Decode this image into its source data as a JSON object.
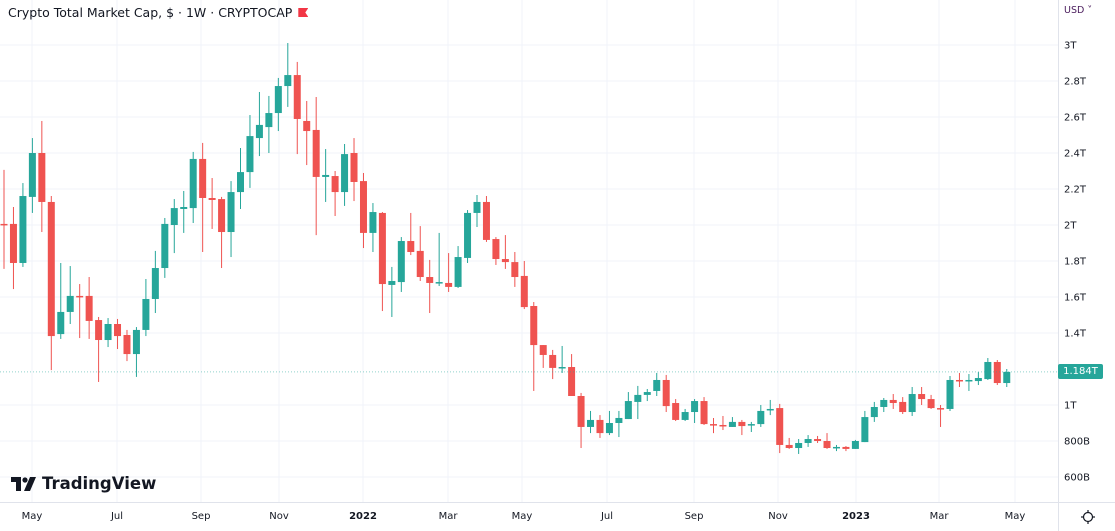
{
  "header": {
    "title": "Crypto Total Market Cap, $ · 1W · CRYPTOCAP",
    "flag_icon": "flag-icon",
    "currency": "USD ˅"
  },
  "watermark": {
    "text": "TradingView"
  },
  "last_price": "1.184T",
  "colors": {
    "up": "#26a69a",
    "down": "#ef5350",
    "grid": "#f0f3fa",
    "text": "#131722"
  },
  "chart_data": {
    "type": "candlestick",
    "title": "Crypto Total Market Cap, $ · 1W · CRYPTOCAP",
    "interval": "1W",
    "x_start": "2021-04-12",
    "y_unit": "T USD",
    "ylim": [
      0.6,
      3.0
    ],
    "y_ticks": [
      {
        "value": 3.0,
        "label": "3T"
      },
      {
        "value": 2.8,
        "label": "2.8T"
      },
      {
        "value": 2.6,
        "label": "2.6T"
      },
      {
        "value": 2.4,
        "label": "2.4T"
      },
      {
        "value": 2.2,
        "label": "2.2T"
      },
      {
        "value": 2.0,
        "label": "2T"
      },
      {
        "value": 1.8,
        "label": "1.8T"
      },
      {
        "value": 1.6,
        "label": "1.6T"
      },
      {
        "value": 1.4,
        "label": "1.4T"
      },
      {
        "value": 1.0,
        "label": "1T"
      },
      {
        "value": 0.8,
        "label": "800B"
      },
      {
        "value": 0.6,
        "label": "600B"
      }
    ],
    "x_ticks": [
      "May",
      "Jul",
      "Sep",
      "Nov",
      "2022",
      "Mar",
      "May",
      "Jul",
      "Sep",
      "Nov",
      "2023",
      "Mar",
      "May"
    ],
    "grid": true,
    "ohlc": [
      [
        2.006,
        2.306,
        1.756,
        2.0
      ],
      [
        2.006,
        2.1,
        1.644,
        1.789
      ],
      [
        1.789,
        2.233,
        1.767,
        2.161
      ],
      [
        2.156,
        2.483,
        2.067,
        2.4
      ],
      [
        2.4,
        2.578,
        1.961,
        2.128
      ],
      [
        2.128,
        2.161,
        1.194,
        1.383
      ],
      [
        1.394,
        1.789,
        1.367,
        1.517
      ],
      [
        1.517,
        1.772,
        1.45,
        1.606
      ],
      [
        1.606,
        1.672,
        1.372,
        1.6
      ],
      [
        1.606,
        1.711,
        1.367,
        1.467
      ],
      [
        1.472,
        1.489,
        1.128,
        1.361
      ],
      [
        1.361,
        1.483,
        1.322,
        1.45
      ],
      [
        1.45,
        1.478,
        1.311,
        1.383
      ],
      [
        1.389,
        1.417,
        1.244,
        1.283
      ],
      [
        1.283,
        1.433,
        1.156,
        1.417
      ],
      [
        1.417,
        1.7,
        1.383,
        1.589
      ],
      [
        1.589,
        1.856,
        1.511,
        1.761
      ],
      [
        1.761,
        2.039,
        1.706,
        2.006
      ],
      [
        2.0,
        2.144,
        1.844,
        2.094
      ],
      [
        2.089,
        2.189,
        1.956,
        2.1
      ],
      [
        2.094,
        2.406,
        2.011,
        2.367
      ],
      [
        2.367,
        2.456,
        1.85,
        2.15
      ],
      [
        2.15,
        2.261,
        1.978,
        2.139
      ],
      [
        2.144,
        2.156,
        1.761,
        1.961
      ],
      [
        1.961,
        2.244,
        1.822,
        2.183
      ],
      [
        2.183,
        2.428,
        2.089,
        2.294
      ],
      [
        2.294,
        2.611,
        2.206,
        2.494
      ],
      [
        2.483,
        2.739,
        2.383,
        2.556
      ],
      [
        2.544,
        2.717,
        2.4,
        2.622
      ],
      [
        2.622,
        2.817,
        2.522,
        2.772
      ],
      [
        2.772,
        3.011,
        2.656,
        2.833
      ],
      [
        2.833,
        2.906,
        2.394,
        2.589
      ],
      [
        2.578,
        2.689,
        2.333,
        2.522
      ],
      [
        2.528,
        2.711,
        1.944,
        2.267
      ],
      [
        2.267,
        2.422,
        2.128,
        2.278
      ],
      [
        2.272,
        2.3,
        2.05,
        2.183
      ],
      [
        2.183,
        2.45,
        2.106,
        2.394
      ],
      [
        2.4,
        2.483,
        2.133,
        2.239
      ],
      [
        2.244,
        2.289,
        1.872,
        1.956
      ],
      [
        1.956,
        2.122,
        1.85,
        2.072
      ],
      [
        2.067,
        2.072,
        1.522,
        1.672
      ],
      [
        1.667,
        1.767,
        1.489,
        1.689
      ],
      [
        1.683,
        1.933,
        1.628,
        1.911
      ],
      [
        1.911,
        2.067,
        1.833,
        1.85
      ],
      [
        1.856,
        1.994,
        1.689,
        1.711
      ],
      [
        1.711,
        1.806,
        1.511,
        1.678
      ],
      [
        1.678,
        1.956,
        1.661,
        1.683
      ],
      [
        1.678,
        1.844,
        1.628,
        1.656
      ],
      [
        1.656,
        1.883,
        1.65,
        1.822
      ],
      [
        1.817,
        2.083,
        1.789,
        2.067
      ],
      [
        2.067,
        2.167,
        1.989,
        2.128
      ],
      [
        2.128,
        2.161,
        1.906,
        1.917
      ],
      [
        1.922,
        1.933,
        1.778,
        1.811
      ],
      [
        1.811,
        1.944,
        1.756,
        1.794
      ],
      [
        1.794,
        1.85,
        1.656,
        1.711
      ],
      [
        1.717,
        1.8,
        1.533,
        1.544
      ],
      [
        1.55,
        1.572,
        1.078,
        1.333
      ],
      [
        1.333,
        1.333,
        1.206,
        1.278
      ],
      [
        1.278,
        1.306,
        1.144,
        1.206
      ],
      [
        1.206,
        1.328,
        1.178,
        1.211
      ],
      [
        1.211,
        1.283,
        1.05,
        1.05
      ],
      [
        1.05,
        1.067,
        0.761,
        0.878
      ],
      [
        0.878,
        0.967,
        0.844,
        0.917
      ],
      [
        0.917,
        0.944,
        0.817,
        0.844
      ],
      [
        0.844,
        0.967,
        0.833,
        0.9
      ],
      [
        0.9,
        0.967,
        0.822,
        0.928
      ],
      [
        0.922,
        1.072,
        0.922,
        1.022
      ],
      [
        1.017,
        1.106,
        0.922,
        1.056
      ],
      [
        1.056,
        1.089,
        1.022,
        1.072
      ],
      [
        1.078,
        1.178,
        1.05,
        1.139
      ],
      [
        1.139,
        1.167,
        0.961,
        0.994
      ],
      [
        1.011,
        1.033,
        0.911,
        0.917
      ],
      [
        0.917,
        0.978,
        0.911,
        0.961
      ],
      [
        0.961,
        1.033,
        0.9,
        1.022
      ],
      [
        1.022,
        1.044,
        0.889,
        0.894
      ],
      [
        0.894,
        0.928,
        0.844,
        0.889
      ],
      [
        0.889,
        0.939,
        0.861,
        0.883
      ],
      [
        0.878,
        0.933,
        0.878,
        0.906
      ],
      [
        0.906,
        0.917,
        0.833,
        0.883
      ],
      [
        0.889,
        0.906,
        0.85,
        0.894
      ],
      [
        0.894,
        1.0,
        0.878,
        0.967
      ],
      [
        0.972,
        1.028,
        0.944,
        0.978
      ],
      [
        0.983,
        1.006,
        0.733,
        0.778
      ],
      [
        0.778,
        0.817,
        0.756,
        0.761
      ],
      [
        0.761,
        0.811,
        0.728,
        0.789
      ],
      [
        0.789,
        0.833,
        0.767,
        0.811
      ],
      [
        0.811,
        0.828,
        0.789,
        0.8
      ],
      [
        0.8,
        0.844,
        0.756,
        0.761
      ],
      [
        0.761,
        0.778,
        0.744,
        0.767
      ],
      [
        0.767,
        0.772,
        0.744,
        0.756
      ],
      [
        0.756,
        0.806,
        0.756,
        0.8
      ],
      [
        0.794,
        0.967,
        0.794,
        0.933
      ],
      [
        0.933,
        1.017,
        0.906,
        0.989
      ],
      [
        0.989,
        1.039,
        0.961,
        1.028
      ],
      [
        1.028,
        1.061,
        0.978,
        1.011
      ],
      [
        1.017,
        1.044,
        0.95,
        0.961
      ],
      [
        0.961,
        1.1,
        0.939,
        1.061
      ],
      [
        1.061,
        1.1,
        1.0,
        1.033
      ],
      [
        1.033,
        1.056,
        0.978,
        0.983
      ],
      [
        0.983,
        1.0,
        0.878,
        0.978
      ],
      [
        0.978,
        1.161,
        0.967,
        1.139
      ],
      [
        1.139,
        1.178,
        1.1,
        1.133
      ],
      [
        1.133,
        1.172,
        1.078,
        1.139
      ],
      [
        1.133,
        1.183,
        1.111,
        1.15
      ],
      [
        1.144,
        1.261,
        1.139,
        1.239
      ],
      [
        1.239,
        1.25,
        1.111,
        1.122
      ],
      [
        1.122,
        1.2,
        1.1,
        1.184
      ]
    ]
  }
}
